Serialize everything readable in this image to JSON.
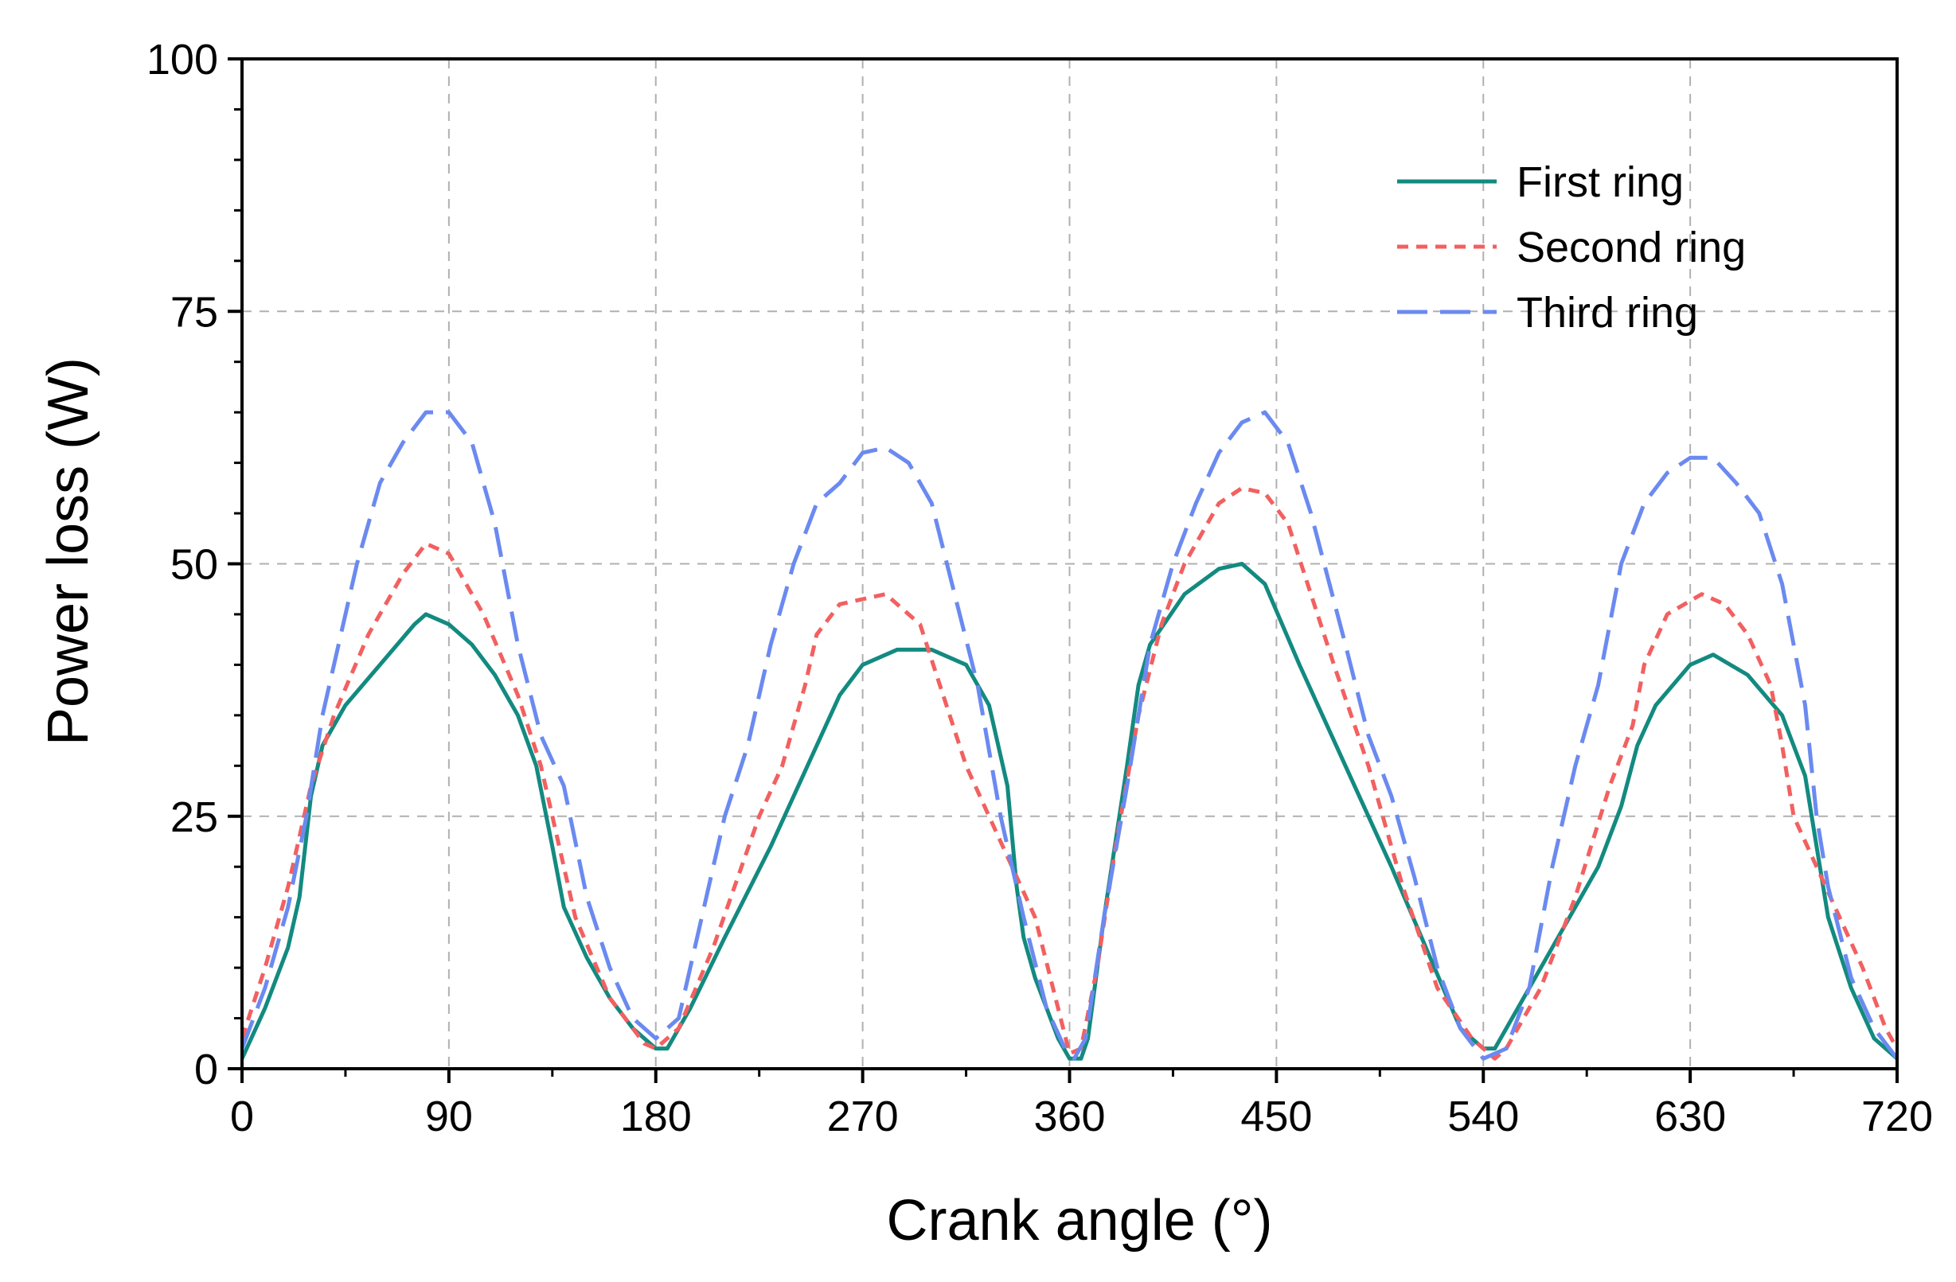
{
  "chart_data": {
    "type": "line",
    "xlabel": "Crank angle (°)",
    "ylabel": "Power loss (W)",
    "xlim": [
      0,
      720
    ],
    "ylim": [
      0,
      100
    ],
    "x_ticks": [
      0,
      90,
      180,
      270,
      360,
      450,
      540,
      630,
      720
    ],
    "y_ticks": [
      0,
      25,
      50,
      75,
      100
    ],
    "x_tick_labels": [
      "0",
      "90",
      "180",
      "270",
      "360",
      "450",
      "540",
      "630",
      "720"
    ],
    "y_tick_labels": [
      "0",
      "25",
      "50",
      "75",
      "100"
    ],
    "grid": true,
    "legend_position": "top-right",
    "series": [
      {
        "name": "First ring",
        "color": "#138a80",
        "dash": "solid",
        "points": [
          [
            0,
            1
          ],
          [
            10,
            6
          ],
          [
            20,
            12
          ],
          [
            25,
            17
          ],
          [
            30,
            27
          ],
          [
            35,
            32
          ],
          [
            45,
            36
          ],
          [
            60,
            40
          ],
          [
            75,
            44
          ],
          [
            80,
            45
          ],
          [
            90,
            44
          ],
          [
            100,
            42
          ],
          [
            110,
            39
          ],
          [
            120,
            35
          ],
          [
            128,
            30
          ],
          [
            135,
            22
          ],
          [
            140,
            16
          ],
          [
            150,
            11
          ],
          [
            160,
            7
          ],
          [
            170,
            4
          ],
          [
            180,
            2
          ],
          [
            185,
            2
          ],
          [
            195,
            6
          ],
          [
            210,
            13
          ],
          [
            230,
            22
          ],
          [
            250,
            32
          ],
          [
            260,
            37
          ],
          [
            270,
            40
          ],
          [
            285,
            41.5
          ],
          [
            300,
            41.5
          ],
          [
            315,
            40
          ],
          [
            325,
            36
          ],
          [
            333,
            28
          ],
          [
            337,
            18
          ],
          [
            340,
            13
          ],
          [
            345,
            9
          ],
          [
            355,
            3
          ],
          [
            360,
            1
          ],
          [
            365,
            1
          ],
          [
            368,
            3
          ],
          [
            375,
            15
          ],
          [
            385,
            30
          ],
          [
            390,
            38
          ],
          [
            395,
            42
          ],
          [
            410,
            47
          ],
          [
            425,
            49.5
          ],
          [
            435,
            50
          ],
          [
            445,
            48
          ],
          [
            460,
            40
          ],
          [
            480,
            30
          ],
          [
            500,
            20
          ],
          [
            515,
            12
          ],
          [
            530,
            4
          ],
          [
            540,
            2
          ],
          [
            545,
            2
          ],
          [
            555,
            6
          ],
          [
            570,
            12
          ],
          [
            590,
            20
          ],
          [
            600,
            26
          ],
          [
            607,
            32
          ],
          [
            615,
            36
          ],
          [
            630,
            40
          ],
          [
            640,
            41
          ],
          [
            655,
            39
          ],
          [
            670,
            35
          ],
          [
            680,
            29
          ],
          [
            685,
            22
          ],
          [
            690,
            15
          ],
          [
            700,
            8
          ],
          [
            710,
            3
          ],
          [
            720,
            1
          ]
        ]
      },
      {
        "name": "Second ring",
        "color": "#f26060",
        "dash": "14,10",
        "points": [
          [
            0,
            3
          ],
          [
            10,
            10
          ],
          [
            20,
            18
          ],
          [
            30,
            28
          ],
          [
            40,
            35
          ],
          [
            55,
            43
          ],
          [
            70,
            49
          ],
          [
            80,
            52
          ],
          [
            90,
            51
          ],
          [
            105,
            45
          ],
          [
            120,
            37
          ],
          [
            130,
            30
          ],
          [
            138,
            22
          ],
          [
            145,
            15
          ],
          [
            160,
            7
          ],
          [
            175,
            2.5
          ],
          [
            180,
            2
          ],
          [
            190,
            4
          ],
          [
            205,
            12
          ],
          [
            225,
            25
          ],
          [
            235,
            30
          ],
          [
            245,
            38
          ],
          [
            250,
            43
          ],
          [
            260,
            46
          ],
          [
            280,
            47
          ],
          [
            295,
            44
          ],
          [
            305,
            37
          ],
          [
            315,
            30
          ],
          [
            325,
            25
          ],
          [
            335,
            20
          ],
          [
            345,
            15
          ],
          [
            355,
            6
          ],
          [
            360,
            1.5
          ],
          [
            365,
            2
          ],
          [
            372,
            10
          ],
          [
            380,
            22
          ],
          [
            390,
            35
          ],
          [
            400,
            44
          ],
          [
            410,
            50
          ],
          [
            425,
            56
          ],
          [
            435,
            57.5
          ],
          [
            445,
            57
          ],
          [
            455,
            54
          ],
          [
            465,
            47
          ],
          [
            475,
            40
          ],
          [
            490,
            30
          ],
          [
            505,
            18
          ],
          [
            520,
            8
          ],
          [
            535,
            3
          ],
          [
            540,
            2
          ],
          [
            545,
            1
          ],
          [
            550,
            2
          ],
          [
            565,
            8
          ],
          [
            580,
            17
          ],
          [
            595,
            28
          ],
          [
            605,
            34
          ],
          [
            610,
            40
          ],
          [
            620,
            45
          ],
          [
            635,
            47
          ],
          [
            645,
            46
          ],
          [
            655,
            43
          ],
          [
            665,
            38
          ],
          [
            670,
            32
          ],
          [
            675,
            25
          ],
          [
            685,
            20
          ],
          [
            695,
            15
          ],
          [
            705,
            10
          ],
          [
            715,
            4
          ],
          [
            720,
            2
          ]
        ]
      },
      {
        "name": "Third ring",
        "color": "#6b8af0",
        "dash": "38,16",
        "points": [
          [
            0,
            2
          ],
          [
            10,
            8
          ],
          [
            20,
            16
          ],
          [
            28,
            25
          ],
          [
            35,
            35
          ],
          [
            42,
            42
          ],
          [
            50,
            50
          ],
          [
            60,
            58
          ],
          [
            70,
            62
          ],
          [
            80,
            65
          ],
          [
            90,
            65
          ],
          [
            100,
            62
          ],
          [
            110,
            54
          ],
          [
            120,
            42
          ],
          [
            130,
            33
          ],
          [
            140,
            28
          ],
          [
            150,
            17
          ],
          [
            160,
            10
          ],
          [
            170,
            5
          ],
          [
            180,
            3
          ],
          [
            190,
            5
          ],
          [
            200,
            15
          ],
          [
            210,
            25
          ],
          [
            220,
            32
          ],
          [
            230,
            42
          ],
          [
            240,
            50
          ],
          [
            250,
            56
          ],
          [
            260,
            58
          ],
          [
            270,
            61
          ],
          [
            280,
            61.5
          ],
          [
            290,
            60
          ],
          [
            300,
            56
          ],
          [
            310,
            47
          ],
          [
            320,
            38
          ],
          [
            330,
            25
          ],
          [
            340,
            15
          ],
          [
            350,
            6
          ],
          [
            358,
            2
          ],
          [
            362,
            1
          ],
          [
            367,
            3
          ],
          [
            375,
            15
          ],
          [
            385,
            28
          ],
          [
            395,
            42
          ],
          [
            405,
            50
          ],
          [
            415,
            56
          ],
          [
            425,
            61
          ],
          [
            435,
            64
          ],
          [
            445,
            65
          ],
          [
            455,
            62
          ],
          [
            465,
            55
          ],
          [
            480,
            42
          ],
          [
            490,
            33
          ],
          [
            500,
            27
          ],
          [
            510,
            19
          ],
          [
            520,
            10
          ],
          [
            530,
            4
          ],
          [
            540,
            1
          ],
          [
            550,
            2
          ],
          [
            560,
            8
          ],
          [
            570,
            20
          ],
          [
            580,
            30
          ],
          [
            590,
            38
          ],
          [
            600,
            50
          ],
          [
            610,
            56
          ],
          [
            620,
            59
          ],
          [
            630,
            60.5
          ],
          [
            640,
            60.5
          ],
          [
            650,
            58
          ],
          [
            660,
            55
          ],
          [
            670,
            48
          ],
          [
            680,
            36
          ],
          [
            685,
            25
          ],
          [
            690,
            18
          ],
          [
            700,
            9
          ],
          [
            710,
            4
          ],
          [
            720,
            1
          ]
        ]
      }
    ]
  }
}
